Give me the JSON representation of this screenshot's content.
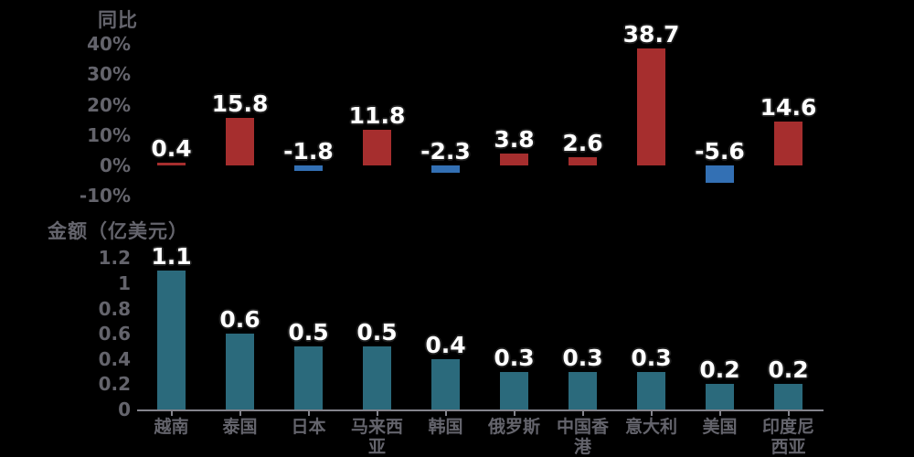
{
  "figure": {
    "background": "#000000",
    "axis_text_color": "#64646c",
    "axis_line_color": "#84848c",
    "data_label_color": "#ffffff"
  },
  "chart_data": [
    {
      "type": "bar",
      "title": "同比",
      "unit": "%",
      "categories": [
        "越南",
        "泰国",
        "日本",
        "马来西亚",
        "韩国",
        "俄罗斯",
        "中国香港",
        "意大利",
        "美国",
        "印度尼西亚"
      ],
      "values": [
        0.4,
        15.8,
        -1.8,
        11.8,
        -2.3,
        3.8,
        2.6,
        38.7,
        -5.6,
        14.6
      ],
      "data_labels": [
        "0.4",
        "15.8",
        "-1.8",
        "11.8",
        "-2.3",
        "3.8",
        "2.6",
        "38.7",
        "-5.6",
        "14.6"
      ],
      "y_ticks": [
        {
          "label": "40%",
          "value": 40
        },
        {
          "label": "30%",
          "value": 30
        },
        {
          "label": "20%",
          "value": 20
        },
        {
          "label": "10%",
          "value": 10
        },
        {
          "label": "0%",
          "value": 0
        },
        {
          "label": "-10%",
          "value": -10
        }
      ],
      "ylim": [
        -10,
        45
      ],
      "positive_color": "#a62e2e",
      "negative_color": "#3370b4",
      "grid": false,
      "legend": null,
      "x_axis_labels_visible": false
    },
    {
      "type": "bar",
      "title": "金额（亿美元）",
      "unit": "亿美元",
      "categories": [
        "越南",
        "泰国",
        "日本",
        "马来西亚",
        "韩国",
        "俄罗斯",
        "中国香港",
        "意大利",
        "美国",
        "印度尼西亚"
      ],
      "values": [
        1.1,
        0.6,
        0.5,
        0.5,
        0.4,
        0.3,
        0.3,
        0.3,
        0.2,
        0.2
      ],
      "data_labels": [
        "1.1",
        "0.6",
        "0.5",
        "0.5",
        "0.4",
        "0.3",
        "0.3",
        "0.3",
        "0.2",
        "0.2"
      ],
      "y_ticks": [
        {
          "label": "1.2",
          "value": 1.2
        },
        {
          "label": "1",
          "value": 1
        },
        {
          "label": "0.8",
          "value": 0.8
        },
        {
          "label": "0.6",
          "value": 0.6
        },
        {
          "label": "0.4",
          "value": 0.4
        },
        {
          "label": "0.2",
          "value": 0.2
        },
        {
          "label": "0",
          "value": 0
        }
      ],
      "ylim": [
        0,
        1.3
      ],
      "bar_color": "#2b6a7c",
      "grid": false,
      "legend": null,
      "x_axis_labels_visible": true
    }
  ]
}
